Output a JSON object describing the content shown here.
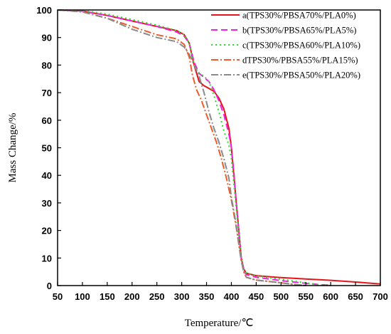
{
  "chart_data": {
    "type": "line",
    "xlabel": "Temperature/℃",
    "ylabel": "Mass Change/%",
    "xlim": [
      50,
      700
    ],
    "ylim": [
      0,
      100
    ],
    "xticks": [
      50,
      100,
      150,
      200,
      250,
      300,
      350,
      400,
      450,
      500,
      550,
      600,
      650,
      700
    ],
    "yticks": [
      0,
      10,
      20,
      30,
      40,
      50,
      60,
      70,
      80,
      90,
      100
    ],
    "grid": false,
    "legend_position": "top-right",
    "series": [
      {
        "name": "a(TPS30%/PBSA70%/PLA0%)",
        "color": "#e8141c",
        "dash": "solid",
        "points": [
          [
            50,
            100
          ],
          [
            100,
            99.6
          ],
          [
            150,
            98
          ],
          [
            200,
            96
          ],
          [
            250,
            94
          ],
          [
            290,
            92.5
          ],
          [
            305,
            91
          ],
          [
            315,
            88
          ],
          [
            325,
            80
          ],
          [
            335,
            74
          ],
          [
            345,
            72.5
          ],
          [
            355,
            71.5
          ],
          [
            365,
            70.5
          ],
          [
            375,
            68
          ],
          [
            385,
            64
          ],
          [
            395,
            57
          ],
          [
            400,
            50
          ],
          [
            405,
            40
          ],
          [
            410,
            30
          ],
          [
            415,
            20
          ],
          [
            420,
            10
          ],
          [
            425,
            6
          ],
          [
            430,
            4.5
          ],
          [
            450,
            3.6
          ],
          [
            500,
            2.9
          ],
          [
            550,
            2.4
          ],
          [
            600,
            1.9
          ],
          [
            650,
            1.3
          ],
          [
            700,
            0.6
          ]
        ]
      },
      {
        "name": "b(TPS30%/PBSA65%/PLA5%)",
        "color": "#f020e0",
        "dash": "9,5",
        "points": [
          [
            50,
            100
          ],
          [
            100,
            99.6
          ],
          [
            150,
            98
          ],
          [
            200,
            96
          ],
          [
            250,
            94
          ],
          [
            290,
            92
          ],
          [
            305,
            90.5
          ],
          [
            315,
            88
          ],
          [
            325,
            81
          ],
          [
            335,
            77
          ],
          [
            345,
            75.5
          ],
          [
            355,
            74
          ],
          [
            365,
            71
          ],
          [
            375,
            67
          ],
          [
            385,
            62
          ],
          [
            395,
            55
          ],
          [
            400,
            50
          ],
          [
            405,
            41
          ],
          [
            410,
            30
          ],
          [
            415,
            20
          ],
          [
            420,
            10
          ],
          [
            425,
            6
          ],
          [
            430,
            4
          ],
          [
            450,
            3
          ],
          [
            500,
            1.8
          ],
          [
            550,
            0.8
          ],
          [
            580,
            0.3
          ],
          [
            600,
            0.1
          ]
        ]
      },
      {
        "name": "c(TPS30%/PBSA60%/PLA10%)",
        "color": "#22e022",
        "dash": "2,4",
        "points": [
          [
            50,
            100
          ],
          [
            100,
            99.8
          ],
          [
            150,
            98.5
          ],
          [
            200,
            96.5
          ],
          [
            250,
            94.5
          ],
          [
            290,
            92.5
          ],
          [
            305,
            91
          ],
          [
            315,
            88
          ],
          [
            325,
            80
          ],
          [
            335,
            77
          ],
          [
            345,
            76
          ],
          [
            355,
            74
          ],
          [
            365,
            69
          ],
          [
            375,
            63
          ],
          [
            385,
            56
          ],
          [
            395,
            51
          ],
          [
            400,
            46
          ],
          [
            405,
            37
          ],
          [
            410,
            28
          ],
          [
            415,
            19
          ],
          [
            420,
            10
          ],
          [
            425,
            6
          ],
          [
            430,
            4.5
          ],
          [
            450,
            3.5
          ],
          [
            500,
            2.3
          ],
          [
            550,
            1
          ],
          [
            580,
            0.2
          ],
          [
            600,
            0
          ]
        ]
      },
      {
        "name": "dTPS30%/PBSA55%/PLA15%)",
        "color": "#f05a28",
        "dash": "10,3,2,3",
        "points": [
          [
            50,
            100
          ],
          [
            100,
            99.3
          ],
          [
            150,
            97
          ],
          [
            200,
            94
          ],
          [
            250,
            91
          ],
          [
            290,
            89.5
          ],
          [
            305,
            87.5
          ],
          [
            315,
            83
          ],
          [
            322,
            76
          ],
          [
            330,
            71
          ],
          [
            340,
            67
          ],
          [
            350,
            62
          ],
          [
            360,
            57
          ],
          [
            370,
            52
          ],
          [
            380,
            46
          ],
          [
            390,
            39
          ],
          [
            400,
            31
          ],
          [
            410,
            21
          ],
          [
            415,
            15
          ],
          [
            420,
            9
          ],
          [
            425,
            5
          ],
          [
            430,
            3
          ],
          [
            450,
            2
          ],
          [
            500,
            1
          ],
          [
            530,
            0.3
          ],
          [
            550,
            0
          ]
        ]
      },
      {
        "name": "e(TPS30%/PBSA50%/PLA20%)",
        "color": "#8a8a8a",
        "dash": "10,3,2,3",
        "points": [
          [
            50,
            100
          ],
          [
            100,
            99.3
          ],
          [
            150,
            97
          ],
          [
            200,
            93
          ],
          [
            250,
            90
          ],
          [
            290,
            88.5
          ],
          [
            305,
            86.5
          ],
          [
            315,
            84
          ],
          [
            325,
            80
          ],
          [
            335,
            76
          ],
          [
            345,
            70
          ],
          [
            355,
            63
          ],
          [
            365,
            57
          ],
          [
            375,
            52
          ],
          [
            385,
            46
          ],
          [
            395,
            39
          ],
          [
            400,
            32
          ],
          [
            410,
            22
          ],
          [
            415,
            15
          ],
          [
            420,
            9
          ],
          [
            425,
            5
          ],
          [
            430,
            3
          ],
          [
            450,
            2
          ],
          [
            500,
            1
          ],
          [
            530,
            0.3
          ],
          [
            550,
            0
          ]
        ]
      }
    ]
  }
}
